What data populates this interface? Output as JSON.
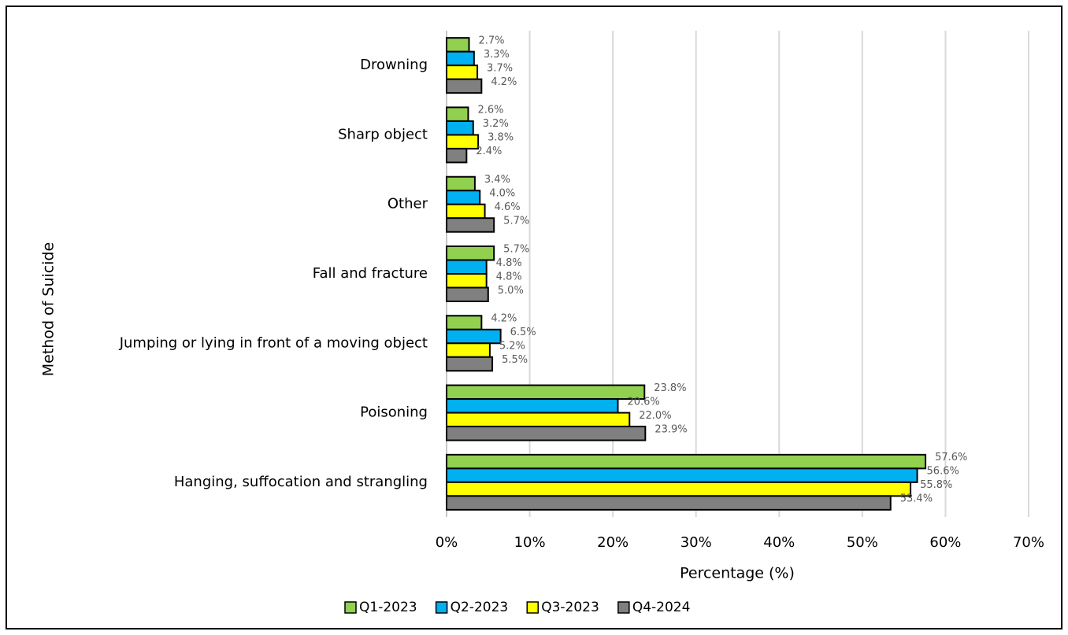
{
  "chart_data": {
    "type": "bar",
    "orientation": "horizontal",
    "xlabel": "Percentage (%)",
    "ylabel": "Method of Suicide",
    "categories": [
      "Drowning",
      "Sharp object",
      "Other",
      "Fall and fracture",
      "Jumping or lying in front of a moving object",
      "Poisoning",
      "Hanging, suffocation and strangling"
    ],
    "series": [
      {
        "name": "Q1-2023",
        "color": "#92d050",
        "values": [
          2.7,
          2.6,
          3.4,
          5.7,
          4.2,
          23.8,
          57.6
        ],
        "value_labels": [
          "2.7%",
          "2.6%",
          "3.4%",
          "5.7%",
          "4.2%",
          "23.8%",
          "57.6%"
        ]
      },
      {
        "name": "Q2-2023",
        "color": "#00b0f0",
        "values": [
          3.3,
          3.2,
          4.0,
          4.8,
          6.5,
          20.6,
          56.6
        ],
        "value_labels": [
          "3.3%",
          "3.2%",
          "4.0%",
          "4.8%",
          "6.5%",
          "20.6%",
          "56.6%"
        ]
      },
      {
        "name": "Q3-2023",
        "color": "#ffff00",
        "values": [
          3.7,
          3.8,
          4.6,
          4.8,
          5.2,
          22.0,
          55.8
        ],
        "value_labels": [
          "3.7%",
          "3.8%",
          "4.6%",
          "4.8%",
          "5.2%",
          "22.0%",
          "55.8%"
        ]
      },
      {
        "name": "Q4-2024",
        "color": "#808080",
        "values": [
          4.2,
          2.4,
          5.7,
          5.0,
          5.5,
          23.9,
          53.4
        ],
        "value_labels": [
          "4.2%",
          "2.4%",
          "5.7%",
          "5.0%",
          "5.5%",
          "23.9%",
          "53.4%"
        ]
      }
    ],
    "xlim": [
      0,
      70
    ],
    "xticks": [
      {
        "value": 0,
        "label": "0%"
      },
      {
        "value": 10,
        "label": "10%"
      },
      {
        "value": 20,
        "label": "20%"
      },
      {
        "value": 30,
        "label": "30%"
      },
      {
        "value": 40,
        "label": "40%"
      },
      {
        "value": 50,
        "label": "50%"
      },
      {
        "value": 60,
        "label": "60%"
      },
      {
        "value": 70,
        "label": "70%"
      }
    ],
    "grid": true,
    "legend": "bottom"
  }
}
